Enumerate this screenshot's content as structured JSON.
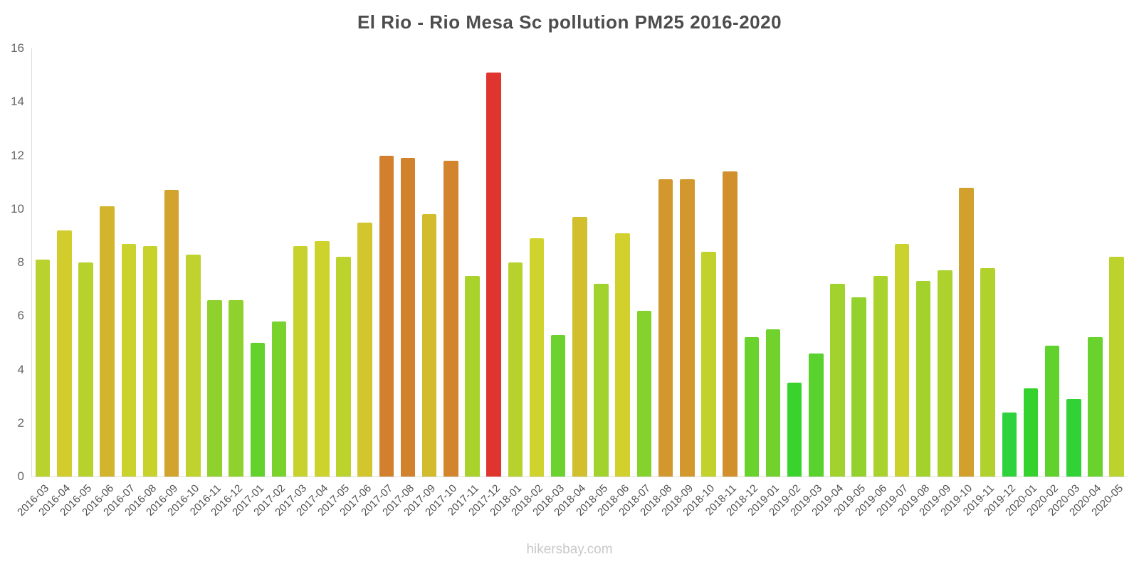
{
  "page": {
    "title": "El Rio - Rio Mesa Sc pollution PM25 2016-2020"
  },
  "footer": {
    "watermark": "hikersbay.com"
  },
  "chart_data": {
    "type": "bar",
    "title": "El Rio - Rio Mesa Sc pollution PM25 2016-2020",
    "xlabel": "",
    "ylabel": "",
    "ylim": [
      0,
      16
    ],
    "y_ticks": [
      0,
      2,
      4,
      6,
      8,
      10,
      12,
      14,
      16
    ],
    "grid": false,
    "legend": false,
    "categories": [
      "2016-03",
      "2016-04",
      "2016-05",
      "2016-06",
      "2016-07",
      "2016-08",
      "2016-09",
      "2016-10",
      "2016-11",
      "2016-12",
      "2017-01",
      "2017-02",
      "2017-03",
      "2017-04",
      "2017-05",
      "2017-06",
      "2017-07",
      "2017-08",
      "2017-09",
      "2017-10",
      "2017-11",
      "2017-12",
      "2018-01",
      "2018-02",
      "2018-03",
      "2018-04",
      "2018-05",
      "2018-06",
      "2018-07",
      "2018-08",
      "2018-09",
      "2018-10",
      "2018-11",
      "2018-12",
      "2019-01",
      "2019-02",
      "2019-03",
      "2019-04",
      "2019-05",
      "2019-06",
      "2019-07",
      "2019-08",
      "2019-09",
      "2019-10",
      "2019-11",
      "2019-12",
      "2020-01",
      "2020-02",
      "2020-03",
      "2020-04",
      "2020-05"
    ],
    "values": [
      8.1,
      9.2,
      8.0,
      10.1,
      8.7,
      8.6,
      10.7,
      8.3,
      6.6,
      6.6,
      5.0,
      5.8,
      8.6,
      8.8,
      8.2,
      9.5,
      12.0,
      11.9,
      9.8,
      11.8,
      7.5,
      15.1,
      8.0,
      8.9,
      5.3,
      9.7,
      7.2,
      9.1,
      6.2,
      11.1,
      11.1,
      8.4,
      11.4,
      5.2,
      5.5,
      3.5,
      4.6,
      7.2,
      6.7,
      7.5,
      8.7,
      7.3,
      7.7,
      10.8,
      7.8,
      2.4,
      3.3,
      4.9,
      2.9,
      5.2,
      8.2
    ],
    "colors": [
      "#BAD22D",
      "#D2CD2D",
      "#B7D22D",
      "#D2B42D",
      "#CAD22D",
      "#C7D22D",
      "#D2A32D",
      "#BFD22D",
      "#90D22D",
      "#90D22D",
      "#64D22D",
      "#7AD22D",
      "#C7D22D",
      "#CDD22D",
      "#BCD22D",
      "#D2C52D",
      "#D2802D",
      "#D2822D",
      "#D2BC2D",
      "#D2852D",
      "#A9D22D",
      "#E0342E",
      "#B7D22D",
      "#D0D22D",
      "#6CD22D",
      "#D2BF2D",
      "#A1D22D",
      "#D2D02D",
      "#85D22D",
      "#D2982D",
      "#D2982D",
      "#C2D22D",
      "#D2902D",
      "#69D22D",
      "#72D22D",
      "#3AD22D",
      "#59D22D",
      "#A1D22D",
      "#93D22D",
      "#A9D22D",
      "#CAD22D",
      "#A3D22D",
      "#AED22D",
      "#D2A12D",
      "#B1D22D",
      "#2DD23D",
      "#35D22D",
      "#61D22D",
      "#30D236",
      "#69D22D",
      "#BCD22D"
    ]
  }
}
